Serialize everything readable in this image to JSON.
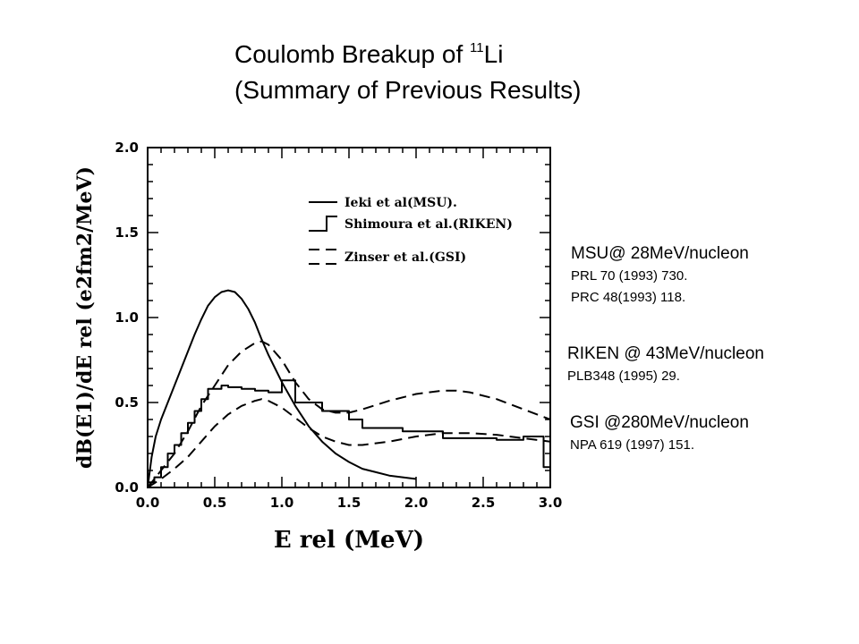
{
  "title": {
    "line1_text": "Coulomb Breakup of ",
    "line1_sup": "11",
    "line1_tail": "Li",
    "line2": "(Summary of Previous Results)"
  },
  "references": [
    {
      "head": "MSU@ 28MeV/nucleon",
      "lines": [
        "PRL 70 (1993) 730.",
        "PRC 48(1993) 118."
      ]
    },
    {
      "head": "RIKEN @ 43MeV/nucleon",
      "lines": [
        "PLB348 (1995) 29."
      ]
    },
    {
      "head": "GSI @280MeV/nucleon",
      "lines": [
        "NPA 619 (1997) 151."
      ]
    }
  ],
  "chart_data": {
    "type": "line",
    "xlabel": "E rel (MeV)",
    "ylabel": "dB(E1)/dE rel (e2fm2/MeV)",
    "xlim": [
      0.0,
      3.0
    ],
    "ylim": [
      0.0,
      2.0
    ],
    "x_ticks": [
      "0.0",
      "0.5",
      "1.0",
      "1.5",
      "2.0",
      "2.5",
      "3.0"
    ],
    "y_ticks": [
      "0.0",
      "0.5",
      "1.0",
      "1.5",
      "2.0"
    ],
    "legend_position": "top-right",
    "series": [
      {
        "name": "Ieki et al(MSU).",
        "style": "solid",
        "x": [
          0.0,
          0.03,
          0.06,
          0.1,
          0.15,
          0.2,
          0.25,
          0.3,
          0.35,
          0.4,
          0.45,
          0.5,
          0.55,
          0.6,
          0.65,
          0.7,
          0.75,
          0.8,
          0.85,
          0.9,
          0.95,
          1.0,
          1.1,
          1.2,
          1.3,
          1.4,
          1.5,
          1.6,
          1.7,
          1.8,
          1.9,
          2.0
        ],
        "y": [
          0.0,
          0.18,
          0.3,
          0.4,
          0.5,
          0.6,
          0.7,
          0.8,
          0.9,
          0.99,
          1.07,
          1.12,
          1.15,
          1.16,
          1.15,
          1.11,
          1.05,
          0.97,
          0.87,
          0.78,
          0.7,
          0.62,
          0.48,
          0.36,
          0.27,
          0.2,
          0.15,
          0.11,
          0.09,
          0.07,
          0.06,
          0.05
        ]
      },
      {
        "name": "Shimoura et al.(RIKEN)",
        "style": "histogram",
        "bin_edges": [
          0.0,
          0.05,
          0.1,
          0.15,
          0.2,
          0.25,
          0.3,
          0.35,
          0.4,
          0.45,
          0.5,
          0.55,
          0.6,
          0.7,
          0.8,
          0.9,
          1.0,
          1.1,
          1.2,
          1.3,
          1.5,
          1.6,
          1.9,
          2.2,
          2.4,
          2.6,
          2.8,
          2.95,
          3.0
        ],
        "values": [
          0.03,
          0.06,
          0.12,
          0.2,
          0.25,
          0.32,
          0.38,
          0.45,
          0.52,
          0.58,
          0.58,
          0.6,
          0.59,
          0.58,
          0.57,
          0.56,
          0.63,
          0.5,
          0.5,
          0.45,
          0.4,
          0.35,
          0.33,
          0.29,
          0.29,
          0.28,
          0.3,
          0.12
        ]
      },
      {
        "name": "Zinser et al.(GSI)",
        "style": "dashed",
        "x": [
          0.0,
          0.1,
          0.2,
          0.3,
          0.4,
          0.5,
          0.6,
          0.7,
          0.8,
          0.85,
          0.9,
          1.0,
          1.1,
          1.2,
          1.3,
          1.4,
          1.5,
          1.6,
          1.8,
          2.0,
          2.2,
          2.3,
          2.4,
          2.6,
          2.8,
          3.0
        ],
        "y": [
          0.0,
          0.1,
          0.2,
          0.33,
          0.48,
          0.6,
          0.72,
          0.8,
          0.85,
          0.86,
          0.84,
          0.75,
          0.62,
          0.52,
          0.46,
          0.44,
          0.44,
          0.46,
          0.51,
          0.55,
          0.57,
          0.57,
          0.56,
          0.52,
          0.46,
          0.4
        ]
      },
      {
        "name": "Zinser et al.(GSI)",
        "style": "dashed",
        "x": [
          0.0,
          0.1,
          0.2,
          0.3,
          0.4,
          0.5,
          0.6,
          0.7,
          0.8,
          0.85,
          0.9,
          1.0,
          1.1,
          1.2,
          1.3,
          1.4,
          1.5,
          1.6,
          1.8,
          2.0,
          2.2,
          2.4,
          2.6,
          2.8,
          3.0
        ],
        "y": [
          0.0,
          0.05,
          0.11,
          0.18,
          0.27,
          0.36,
          0.43,
          0.48,
          0.51,
          0.52,
          0.51,
          0.47,
          0.41,
          0.35,
          0.3,
          0.27,
          0.25,
          0.25,
          0.27,
          0.3,
          0.32,
          0.32,
          0.31,
          0.29,
          0.27
        ]
      }
    ]
  }
}
